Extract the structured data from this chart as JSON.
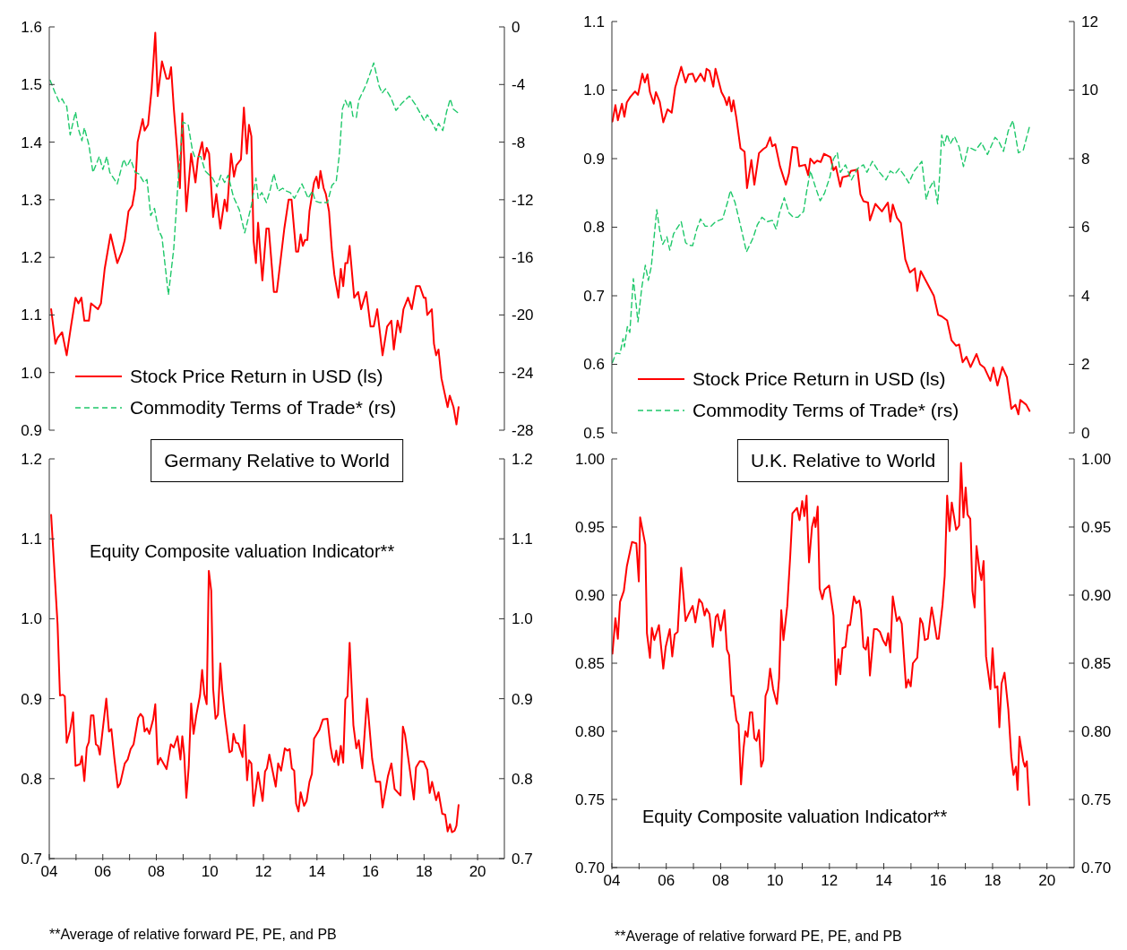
{
  "chart_data": [
    {
      "type": "line",
      "xlim": [
        4,
        21
      ],
      "ylim": [
        0.9,
        1.6
      ],
      "yticks": [
        1.6,
        1.5,
        1.4,
        1.3,
        1.2,
        1.1,
        {
          "value": 1,
          "label": "1.0"
        },
        0.9
      ],
      "y2lim": [
        -28,
        0
      ],
      "y2ticks": [
        0,
        -4,
        -8,
        -12,
        -16,
        -20,
        -24,
        -28
      ],
      "tick_labels": "y",
      "legend": "bottom left",
      "series": [
        {
          "name": "Stock Price Return in USD (ls)",
          "color": "#ff0000",
          "line_style": "solid",
          "x": [
            4.07,
            4.23,
            4.31,
            4.48,
            4.65,
            4.81,
            4.98,
            5.09,
            5.2,
            5.31,
            5.48,
            5.56,
            5.82,
            5.93,
            6.07,
            6.29,
            6.54,
            6.71,
            6.82,
            6.96,
            7.1,
            7.21,
            7.3,
            7.49,
            7.56,
            7.69,
            7.82,
            7.96,
            8.05,
            8.21,
            8.38,
            8.47,
            8.55,
            8.65,
            8.77,
            8.88,
            8.97,
            9.12,
            9.3,
            9.46,
            9.55,
            9.71,
            9.79,
            9.88,
            9.97,
            10.12,
            10.24,
            10.39,
            10.55,
            10.64,
            10.79,
            10.9,
            10.99,
            11.16,
            11.27,
            11.38,
            11.46,
            11.55,
            11.63,
            11.72,
            11.8,
            11.96,
            12.11,
            12.2,
            12.39,
            12.5,
            12.78,
            12.94,
            13.05,
            13.22,
            13.3,
            13.39,
            13.47,
            13.55,
            13.64,
            13.72,
            13.89,
            13.98,
            14.06,
            14.13,
            14.25,
            14.33,
            14.45,
            14.56,
            14.65,
            14.8,
            14.89,
            14.98,
            15.06,
            15.14,
            15.22,
            15.39,
            15.54,
            15.65,
            15.84,
            16.0,
            16.12,
            16.25,
            16.45,
            16.62,
            16.78,
            16.87,
            17.01,
            17.12,
            17.23,
            17.4,
            17.54,
            17.7,
            17.84,
            17.99,
            18.06,
            18.12,
            18.29,
            18.37,
            18.45,
            18.54,
            18.65,
            18.88,
            18.96,
            19.1,
            19.21,
            19.29
          ],
          "values": [
            1.11,
            1.05,
            1.06,
            1.07,
            1.03,
            1.08,
            1.13,
            1.12,
            1.13,
            1.09,
            1.09,
            1.12,
            1.11,
            1.12,
            1.18,
            1.24,
            1.19,
            1.21,
            1.23,
            1.28,
            1.29,
            1.32,
            1.4,
            1.44,
            1.42,
            1.43,
            1.49,
            1.59,
            1.48,
            1.54,
            1.51,
            1.51,
            1.53,
            1.46,
            1.39,
            1.32,
            1.45,
            1.28,
            1.38,
            1.33,
            1.37,
            1.4,
            1.37,
            1.39,
            1.38,
            1.27,
            1.31,
            1.25,
            1.3,
            1.28,
            1.38,
            1.34,
            1.36,
            1.37,
            1.46,
            1.38,
            1.43,
            1.41,
            1.23,
            1.19,
            1.26,
            1.16,
            1.25,
            1.25,
            1.14,
            1.14,
            1.25,
            1.3,
            1.3,
            1.21,
            1.21,
            1.24,
            1.22,
            1.23,
            1.23,
            1.28,
            1.33,
            1.34,
            1.32,
            1.35,
            1.32,
            1.31,
            1.28,
            1.21,
            1.17,
            1.13,
            1.18,
            1.15,
            1.19,
            1.19,
            1.22,
            1.13,
            1.14,
            1.11,
            1.14,
            1.08,
            1.08,
            1.11,
            1.03,
            1.08,
            1.09,
            1.04,
            1.09,
            1.07,
            1.11,
            1.13,
            1.11,
            1.15,
            1.15,
            1.13,
            1.13,
            1.1,
            1.11,
            1.05,
            1.03,
            1.04,
            0.99,
            0.94,
            0.96,
            0.94,
            0.91,
            0.94
          ]
        },
        {
          "name": "Commodity Terms of Trade* (rs)",
          "color": "#1ec86a",
          "line_style": "dashed",
          "axis": "y2",
          "x": [
            4.03,
            4.2,
            4.37,
            4.48,
            4.59,
            4.65,
            4.78,
            4.98,
            5.09,
            5.22,
            5.31,
            5.48,
            5.63,
            5.87,
            6.0,
            6.15,
            6.26,
            6.54,
            6.78,
            6.9,
            7.04,
            7.21,
            7.34,
            7.54,
            7.65,
            7.79,
            7.93,
            8.08,
            8.21,
            8.45,
            8.65,
            8.82,
            8.99,
            9.19,
            9.35,
            9.43,
            9.66,
            9.82,
            10.1,
            10.27,
            10.41,
            10.55,
            10.68,
            10.88,
            11.1,
            11.3,
            11.55,
            11.72,
            11.8,
            11.94,
            12.11,
            12.24,
            12.39,
            12.55,
            12.72,
            12.86,
            13.0,
            13.16,
            13.44,
            13.67,
            13.83,
            13.94,
            14.11,
            14.39,
            14.56,
            14.72,
            14.84,
            14.95,
            15.06,
            15.17,
            15.25,
            15.34,
            15.47,
            15.56,
            15.84,
            16.12,
            16.32,
            16.43,
            16.56,
            16.76,
            16.95,
            17.17,
            17.45,
            17.68,
            18.01,
            18.12,
            18.29,
            18.45,
            18.54,
            18.7,
            18.84,
            18.98,
            19.09,
            19.29
          ],
          "values": [
            -3.7,
            -4.5,
            -5.2,
            -5.0,
            -5.4,
            -5.5,
            -7.5,
            -5.9,
            -7.1,
            -7.9,
            -7.0,
            -8.2,
            -10.1,
            -9.0,
            -9.9,
            -9.0,
            -10.1,
            -10.9,
            -9.2,
            -9.7,
            -9.2,
            -10.1,
            -10.2,
            -10.8,
            -10.6,
            -13.1,
            -12.6,
            -14.1,
            -14.6,
            -18.6,
            -15.4,
            -10.5,
            -6.6,
            -6.8,
            -8.6,
            -9.0,
            -9.0,
            -10.0,
            -10.5,
            -11.1,
            -10.3,
            -10.8,
            -10.3,
            -11.8,
            -12.7,
            -14.3,
            -12.4,
            -10.5,
            -11.9,
            -11.5,
            -12.2,
            -11.4,
            -10.2,
            -11.4,
            -11.2,
            -11.4,
            -11.5,
            -11.9,
            -10.9,
            -11.9,
            -11.4,
            -12.1,
            -12.2,
            -12.2,
            -11.0,
            -10.7,
            -8.8,
            -5.7,
            -5.1,
            -5.6,
            -5.1,
            -6.2,
            -6.3,
            -5.1,
            -4.0,
            -2.5,
            -4.1,
            -4.6,
            -4.3,
            -4.9,
            -5.8,
            -5.3,
            -4.8,
            -5.4,
            -6.5,
            -6.1,
            -6.6,
            -7.2,
            -6.7,
            -7.2,
            -5.9,
            -5.0,
            -5.7,
            -6.0
          ]
        }
      ]
    },
    {
      "type": "line",
      "xlim": [
        4,
        21
      ],
      "ylim": [
        0.5,
        1.1
      ],
      "yticks": [
        1.1,
        {
          "value": 1,
          "label": "1.0"
        },
        0.9,
        0.8,
        0.7,
        0.6,
        0.5
      ],
      "y2lim": [
        0,
        12
      ],
      "y2ticks": [
        12,
        10,
        8,
        6,
        4,
        2,
        0
      ],
      "tick_labels": "y",
      "legend": "bottom left",
      "series": [
        {
          "name": "Stock Price Return in USD (ls)",
          "color": "#ff0000",
          "line_style": "solid",
          "x": [
            4.02,
            4.13,
            4.22,
            4.37,
            4.46,
            4.55,
            4.68,
            4.85,
            4.96,
            5.12,
            5.21,
            5.31,
            5.4,
            5.54,
            5.62,
            5.76,
            5.89,
            6.05,
            6.2,
            6.33,
            6.55,
            6.71,
            6.82,
            6.97,
            7.08,
            7.26,
            7.41,
            7.48,
            7.59,
            7.73,
            7.81,
            8.03,
            8.14,
            8.23,
            8.31,
            8.4,
            8.47,
            8.58,
            8.73,
            8.88,
            8.97,
            9.13,
            9.24,
            9.41,
            9.57,
            9.68,
            9.82,
            9.9,
            10.01,
            10.18,
            10.4,
            10.51,
            10.64,
            10.81,
            10.89,
            11.11,
            11.22,
            11.3,
            11.44,
            11.55,
            11.68,
            11.8,
            12.04,
            12.15,
            12.24,
            12.4,
            12.48,
            12.7,
            12.79,
            13.03,
            13.14,
            13.25,
            13.42,
            13.49,
            13.69,
            13.93,
            14.15,
            14.24,
            14.33,
            14.48,
            14.63,
            14.79,
            14.96,
            15.14,
            15.23,
            15.36,
            15.56,
            15.84,
            16.0,
            16.13,
            16.33,
            16.49,
            16.66,
            16.77,
            16.9,
            17.04,
            17.19,
            17.41,
            17.54,
            17.7,
            17.92,
            18.03,
            18.18,
            18.36,
            18.53,
            18.69,
            18.84,
            18.95,
            19.02,
            19.24,
            19.36
          ],
          "values": [
            0.954,
            0.978,
            0.956,
            0.98,
            0.961,
            0.982,
            0.99,
            0.998,
            0.993,
            1.024,
            1.011,
            1.023,
            0.997,
            0.98,
            0.997,
            0.983,
            0.953,
            0.972,
            0.967,
            1.004,
            1.034,
            1.011,
            1.023,
            1.024,
            1.012,
            1.024,
            1.013,
            1.031,
            1.028,
            1.005,
            1.031,
            0.997,
            0.989,
            0.978,
            0.99,
            0.969,
            0.985,
            0.959,
            0.915,
            0.91,
            0.857,
            0.898,
            0.862,
            0.908,
            0.914,
            0.917,
            0.931,
            0.918,
            0.921,
            0.889,
            0.862,
            0.878,
            0.917,
            0.916,
            0.889,
            0.891,
            0.876,
            0.9,
            0.893,
            0.897,
            0.895,
            0.907,
            0.902,
            0.883,
            0.888,
            0.859,
            0.873,
            0.875,
            0.882,
            0.884,
            0.848,
            0.838,
            0.836,
            0.81,
            0.834,
            0.823,
            0.836,
            0.808,
            0.833,
            0.814,
            0.806,
            0.753,
            0.734,
            0.74,
            0.707,
            0.736,
            0.721,
            0.7,
            0.672,
            0.67,
            0.664,
            0.635,
            0.627,
            0.629,
            0.603,
            0.611,
            0.596,
            0.615,
            0.6,
            0.595,
            0.576,
            0.595,
            0.569,
            0.596,
            0.581,
            0.535,
            0.541,
            0.527,
            0.548,
            0.541,
            0.532
          ]
        },
        {
          "name": "Commodity Terms of Trade* (rs)",
          "color": "#1ec86a",
          "line_style": "dashed",
          "axis": "y2",
          "x": [
            4.02,
            4.15,
            4.3,
            4.41,
            4.46,
            4.57,
            4.66,
            4.79,
            4.96,
            5.1,
            5.23,
            5.34,
            5.45,
            5.65,
            5.76,
            5.87,
            6.02,
            6.13,
            6.27,
            6.55,
            6.71,
            6.82,
            6.97,
            7.12,
            7.26,
            7.43,
            7.65,
            7.81,
            8.07,
            8.25,
            8.36,
            8.53,
            8.75,
            8.95,
            9.19,
            9.35,
            9.52,
            9.71,
            9.9,
            10.04,
            10.15,
            10.34,
            10.51,
            10.67,
            10.84,
            11.05,
            11.16,
            11.3,
            11.49,
            11.66,
            11.82,
            12.02,
            12.15,
            12.29,
            12.4,
            12.59,
            12.81,
            13.03,
            13.25,
            13.38,
            13.58,
            13.8,
            14.08,
            14.24,
            14.41,
            14.57,
            14.79,
            14.92,
            15.12,
            15.4,
            15.56,
            15.67,
            15.84,
            15.98,
            16.05,
            16.13,
            16.22,
            16.33,
            16.44,
            16.6,
            16.77,
            16.93,
            17.1,
            17.37,
            17.59,
            17.81,
            18.09,
            18.22,
            18.4,
            18.58,
            18.75,
            18.95,
            19.13,
            19.35
          ],
          "values": [
            2.05,
            2.33,
            2.31,
            2.75,
            2.51,
            3.1,
            2.93,
            4.5,
            3.24,
            4.24,
            4.89,
            4.45,
            4.85,
            6.51,
            5.9,
            5.5,
            5.72,
            5.33,
            5.81,
            6.16,
            5.55,
            5.48,
            5.46,
            5.94,
            6.24,
            6.03,
            6.03,
            6.16,
            6.24,
            6.72,
            7.07,
            6.72,
            5.98,
            5.28,
            5.68,
            6.07,
            6.29,
            6.16,
            6.2,
            5.94,
            6.38,
            6.86,
            6.42,
            6.29,
            6.29,
            6.46,
            7.03,
            7.64,
            7.16,
            6.77,
            6.99,
            7.47,
            7.99,
            8.17,
            7.6,
            7.82,
            7.38,
            7.71,
            7.82,
            7.6,
            7.92,
            7.64,
            7.38,
            7.64,
            7.55,
            7.71,
            7.47,
            7.29,
            7.64,
            7.92,
            6.81,
            7.12,
            7.36,
            6.68,
            7.47,
            8.69,
            8.38,
            8.71,
            8.43,
            8.65,
            8.34,
            7.77,
            8.34,
            8.24,
            8.47,
            8.12,
            8.62,
            8.52,
            8.21,
            8.82,
            9.11,
            8.17,
            8.25,
            8.91
          ]
        }
      ]
    },
    {
      "type": "line",
      "title": "Germany Relative to World",
      "annotations": [
        "Equity Composite valuation Indicator**",
        "**Average of relative forward PE, PE, and PB"
      ],
      "xlim": [
        4,
        21
      ],
      "xticks": [
        {
          "value": 4,
          "label": "04"
        },
        {
          "value": 5,
          "label": null
        },
        {
          "value": 6,
          "label": "06"
        },
        {
          "value": 7,
          "label": null
        },
        {
          "value": 8,
          "label": "08"
        },
        {
          "value": 9,
          "label": null
        },
        {
          "value": 10,
          "label": "10"
        },
        {
          "value": 11,
          "label": null
        },
        {
          "value": 12,
          "label": "12"
        },
        {
          "value": 13,
          "label": null
        },
        {
          "value": 14,
          "label": "14"
        },
        {
          "value": 15,
          "label": null
        },
        {
          "value": 16,
          "label": "16"
        },
        {
          "value": 17,
          "label": null
        },
        {
          "value": 18,
          "label": "18"
        },
        {
          "value": 19,
          "label": null
        },
        {
          "value": 20,
          "label": "20"
        }
      ],
      "ylim": [
        0.7,
        1.2
      ],
      "yticks": [
        1.2,
        1.1,
        {
          "value": 1,
          "label": "1.0"
        },
        0.9,
        0.8,
        0.7
      ],
      "y2lim": [
        0.7,
        1.2
      ],
      "y2ticks": [
        1.2,
        1.1,
        {
          "value": 1,
          "label": "1.0"
        },
        0.9,
        0.8,
        0.7
      ],
      "series": [
        {
          "color": "#ff0000",
          "line_style": "solid",
          "x": [
            4.07,
            4.31,
            4.4,
            4.51,
            4.58,
            4.65,
            4.78,
            4.89,
            4.98,
            5.15,
            5.22,
            5.31,
            5.4,
            5.48,
            5.56,
            5.65,
            5.74,
            5.82,
            5.89,
            6.04,
            6.13,
            6.23,
            6.32,
            6.43,
            6.56,
            6.65,
            6.82,
            6.93,
            7.04,
            7.15,
            7.32,
            7.41,
            7.5,
            7.56,
            7.65,
            7.74,
            7.88,
            7.96,
            8.05,
            8.15,
            8.38,
            8.54,
            8.65,
            8.79,
            8.9,
            8.97,
            9.04,
            9.12,
            9.21,
            9.3,
            9.39,
            9.49,
            9.63,
            9.71,
            9.79,
            9.88,
            9.96,
            10.05,
            10.12,
            10.21,
            10.3,
            10.39,
            10.46,
            10.55,
            10.73,
            10.82,
            10.88,
            10.97,
            11.06,
            11.22,
            11.29,
            11.39,
            11.46,
            11.55,
            11.63,
            11.8,
            11.97,
            12.06,
            12.13,
            12.22,
            12.46,
            12.55,
            12.66,
            12.8,
            12.89,
            12.98,
            13.06,
            13.15,
            13.22,
            13.31,
            13.39,
            13.52,
            13.61,
            13.72,
            13.81,
            13.89,
            14.0,
            14.09,
            14.22,
            14.39,
            14.5,
            14.58,
            14.65,
            14.72,
            14.8,
            14.89,
            14.98,
            15.06,
            15.14,
            15.22,
            15.36,
            15.47,
            15.56,
            15.69,
            15.87,
            16.06,
            16.2,
            16.36,
            16.45,
            16.65,
            16.78,
            16.9,
            17.12,
            17.21,
            17.29,
            17.4,
            17.62,
            17.7,
            17.84,
            17.99,
            18.12,
            18.21,
            18.3,
            18.45,
            18.54,
            18.68,
            18.79,
            18.88,
            18.97,
            19.04,
            19.14,
            19.21,
            19.29
          ],
          "values": [
            1.13,
            0.993,
            0.904,
            0.905,
            0.903,
            0.845,
            0.861,
            0.883,
            0.816,
            0.818,
            0.828,
            0.797,
            0.839,
            0.846,
            0.879,
            0.879,
            0.843,
            0.841,
            0.83,
            0.874,
            0.9,
            0.859,
            0.862,
            0.826,
            0.789,
            0.794,
            0.819,
            0.824,
            0.837,
            0.843,
            0.876,
            0.881,
            0.877,
            0.859,
            0.863,
            0.856,
            0.874,
            0.893,
            0.818,
            0.826,
            0.812,
            0.843,
            0.839,
            0.853,
            0.824,
            0.853,
            0.83,
            0.776,
            0.815,
            0.894,
            0.856,
            0.879,
            0.904,
            0.936,
            0.906,
            0.893,
            1.06,
            1.035,
            0.913,
            0.875,
            0.88,
            0.944,
            0.911,
            0.881,
            0.833,
            0.835,
            0.856,
            0.845,
            0.844,
            0.827,
            0.867,
            0.798,
            0.823,
            0.819,
            0.766,
            0.808,
            0.772,
            0.809,
            0.813,
            0.83,
            0.79,
            0.819,
            0.81,
            0.838,
            0.835,
            0.837,
            0.813,
            0.81,
            0.769,
            0.759,
            0.783,
            0.766,
            0.772,
            0.796,
            0.806,
            0.85,
            0.856,
            0.861,
            0.874,
            0.875,
            0.841,
            0.826,
            0.821,
            0.835,
            0.817,
            0.841,
            0.82,
            0.899,
            0.903,
            0.97,
            0.867,
            0.838,
            0.848,
            0.813,
            0.9,
            0.825,
            0.796,
            0.796,
            0.764,
            0.803,
            0.819,
            0.787,
            0.779,
            0.865,
            0.855,
            0.828,
            0.774,
            0.814,
            0.822,
            0.821,
            0.811,
            0.782,
            0.796,
            0.773,
            0.783,
            0.756,
            0.755,
            0.734,
            0.743,
            0.733,
            0.735,
            0.741,
            0.767
          ]
        }
      ]
    },
    {
      "type": "line",
      "title": "U.K. Relative to World",
      "annotations": [
        "Equity Composite valuation Indicator**",
        "**Average of relative forward PE, PE, and PB"
      ],
      "xlim": [
        4,
        21
      ],
      "xticks": [
        {
          "value": 4,
          "label": "04"
        },
        {
          "value": 5,
          "label": null
        },
        {
          "value": 6,
          "label": "06"
        },
        {
          "value": 7,
          "label": null
        },
        {
          "value": 8,
          "label": "08"
        },
        {
          "value": 9,
          "label": null
        },
        {
          "value": 10,
          "label": "10"
        },
        {
          "value": 11,
          "label": null
        },
        {
          "value": 12,
          "label": "12"
        },
        {
          "value": 13,
          "label": null
        },
        {
          "value": 14,
          "label": "14"
        },
        {
          "value": 15,
          "label": null
        },
        {
          "value": 16,
          "label": "16"
        },
        {
          "value": 17,
          "label": null
        },
        {
          "value": 18,
          "label": "18"
        },
        {
          "value": 19,
          "label": null
        },
        {
          "value": 20,
          "label": "20"
        }
      ],
      "ylim": [
        0.7,
        1
      ],
      "yticks": [
        {
          "value": 1,
          "label": "1.00"
        },
        0.95,
        {
          "value": 0.9,
          "label": "0.90"
        },
        0.85,
        {
          "value": 0.8,
          "label": "0.80"
        },
        0.75,
        {
          "value": 0.7,
          "label": "0.70"
        }
      ],
      "y2lim": [
        0.7,
        1
      ],
      "y2ticks": [
        {
          "value": 1,
          "label": "1.00"
        },
        0.95,
        {
          "value": 0.9,
          "label": "0.90"
        },
        0.85,
        {
          "value": 0.8,
          "label": "0.80"
        },
        0.75,
        {
          "value": 0.7,
          "label": "0.70"
        }
      ],
      "series": [
        {
          "color": "#ff0000",
          "line_style": "solid",
          "x": [
            4.02,
            4.13,
            4.22,
            4.3,
            4.44,
            4.55,
            4.74,
            4.9,
            4.99,
            5.04,
            5.23,
            5.29,
            5.4,
            5.47,
            5.56,
            5.73,
            5.89,
            5.98,
            6.13,
            6.22,
            6.31,
            6.42,
            6.55,
            6.71,
            6.82,
            6.97,
            7.07,
            7.21,
            7.32,
            7.41,
            7.48,
            7.59,
            7.71,
            7.82,
            7.89,
            8.0,
            8.14,
            8.23,
            8.31,
            8.4,
            8.47,
            8.58,
            8.66,
            8.75,
            8.84,
            8.91,
            8.99,
            9.08,
            9.16,
            9.24,
            9.32,
            9.41,
            9.49,
            9.57,
            9.65,
            9.74,
            9.82,
            9.93,
            10.07,
            10.15,
            10.23,
            10.31,
            10.45,
            10.56,
            10.64,
            10.81,
            10.9,
            11.0,
            11.08,
            11.16,
            11.25,
            11.36,
            11.44,
            11.49,
            11.57,
            11.64,
            11.74,
            11.82,
            11.99,
            12.15,
            12.24,
            12.33,
            12.4,
            12.48,
            12.59,
            12.68,
            12.76,
            12.9,
            12.99,
            13.1,
            13.16,
            13.25,
            13.34,
            13.42,
            13.49,
            13.64,
            13.75,
            13.86,
            13.97,
            14.08,
            14.16,
            14.24,
            14.33,
            14.48,
            14.57,
            14.66,
            14.82,
            14.9,
            14.99,
            15.07,
            15.23,
            15.34,
            15.43,
            15.51,
            15.62,
            15.76,
            15.84,
            15.95,
            16.02,
            16.16,
            16.24,
            16.33,
            16.42,
            16.5,
            16.66,
            16.77,
            16.84,
            16.93,
            17.01,
            17.08,
            17.18,
            17.26,
            17.34,
            17.41,
            17.52,
            17.59,
            17.67,
            17.76,
            17.92,
            18.0,
            18.09,
            18.18,
            18.25,
            18.33,
            18.44,
            18.58,
            18.69,
            18.77,
            18.86,
            18.92,
            18.99,
            19.13,
            19.19,
            19.26,
            19.35
          ],
          "values": [
            0.857,
            0.883,
            0.868,
            0.895,
            0.903,
            0.921,
            0.939,
            0.938,
            0.91,
            0.957,
            0.937,
            0.872,
            0.854,
            0.876,
            0.867,
            0.878,
            0.846,
            0.862,
            0.875,
            0.855,
            0.871,
            0.873,
            0.92,
            0.881,
            0.886,
            0.892,
            0.88,
            0.897,
            0.894,
            0.885,
            0.89,
            0.886,
            0.862,
            0.884,
            0.886,
            0.874,
            0.889,
            0.86,
            0.856,
            0.826,
            0.826,
            0.808,
            0.805,
            0.761,
            0.787,
            0.8,
            0.796,
            0.814,
            0.814,
            0.795,
            0.793,
            0.801,
            0.774,
            0.779,
            0.826,
            0.831,
            0.846,
            0.831,
            0.82,
            0.839,
            0.889,
            0.867,
            0.892,
            0.929,
            0.96,
            0.964,
            0.955,
            0.969,
            0.958,
            0.973,
            0.924,
            0.95,
            0.957,
            0.95,
            0.965,
            0.905,
            0.897,
            0.904,
            0.907,
            0.885,
            0.834,
            0.853,
            0.842,
            0.861,
            0.862,
            0.878,
            0.878,
            0.899,
            0.894,
            0.896,
            0.889,
            0.862,
            0.86,
            0.869,
            0.841,
            0.875,
            0.875,
            0.873,
            0.867,
            0.863,
            0.872,
            0.858,
            0.899,
            0.881,
            0.884,
            0.879,
            0.832,
            0.838,
            0.833,
            0.85,
            0.854,
            0.883,
            0.879,
            0.867,
            0.868,
            0.891,
            0.882,
            0.868,
            0.868,
            0.893,
            0.914,
            0.973,
            0.947,
            0.968,
            0.948,
            0.951,
            0.997,
            0.957,
            0.979,
            0.959,
            0.956,
            0.903,
            0.891,
            0.936,
            0.918,
            0.911,
            0.925,
            0.855,
            0.831,
            0.861,
            0.832,
            0.833,
            0.803,
            0.835,
            0.843,
            0.816,
            0.781,
            0.768,
            0.774,
            0.757,
            0.796,
            0.778,
            0.774,
            0.778,
            0.746
          ]
        }
      ]
    }
  ]
}
